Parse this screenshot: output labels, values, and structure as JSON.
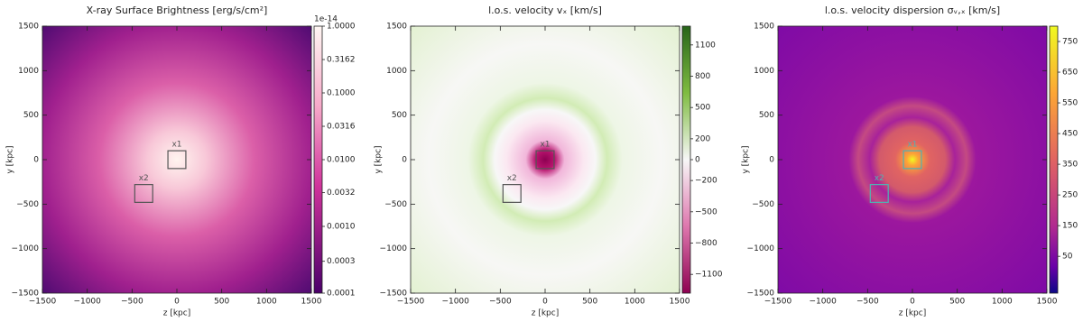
{
  "chart_data": [
    {
      "type": "heatmap",
      "title": "X-ray Surface Brightness [erg/s/cm²]",
      "xlabel": "z [kpc]",
      "ylabel": "y [kpc]",
      "xlim": [
        -1500,
        1500
      ],
      "ylim": [
        -1500,
        1500
      ],
      "xticks": [
        {
          "value": -1500,
          "label": "−1500"
        },
        {
          "value": -1000,
          "label": "−1000"
        },
        {
          "value": -500,
          "label": "−500"
        },
        0,
        500,
        1000,
        1500
      ],
      "yticks": [
        {
          "value": -1500,
          "label": "−1500"
        },
        {
          "value": -1000,
          "label": "−1000"
        },
        {
          "value": -500,
          "label": "−500"
        },
        0,
        500,
        1000,
        1500
      ],
      "colorbar": {
        "log": true,
        "lim": [
          0.0001,
          1
        ],
        "offset_label": "1e-14",
        "ticks": [
          {
            "value": 1,
            "label": "1.0000"
          },
          {
            "value": 0.3162,
            "label": "0.3162"
          },
          {
            "value": 0.1,
            "label": "0.1000"
          },
          {
            "value": 0.0316,
            "label": "0.0316"
          },
          {
            "value": 0.01,
            "label": "0.0100"
          },
          {
            "value": 0.0032,
            "label": "0.0032"
          },
          {
            "value": 0.001,
            "label": "0.0010"
          },
          {
            "value": 0.0003,
            "label": "0.0003"
          },
          {
            "value": 0.0001,
            "label": "0.0001"
          }
        ]
      },
      "box_color": "#555555",
      "annotations": [
        {
          "label": "x1",
          "x": 0,
          "y": 0,
          "size": 200
        },
        {
          "label": "x2",
          "x": -370,
          "y": -380,
          "size": 200
        }
      ]
    },
    {
      "type": "heatmap",
      "title": "l.o.s. velocity vₓ [km/s]",
      "xlabel": "z [kpc]",
      "ylabel": "y [kpc]",
      "xlim": [
        -1500,
        1500
      ],
      "ylim": [
        -1500,
        1500
      ],
      "xticks": [
        {
          "value": -1500,
          "label": "−1500"
        },
        {
          "value": -1000,
          "label": "−1000"
        },
        {
          "value": -500,
          "label": "−500"
        },
        0,
        500,
        1000,
        1500
      ],
      "yticks": [
        {
          "value": -1500,
          "label": "−1500"
        },
        {
          "value": -1000,
          "label": "−1000"
        },
        {
          "value": -500,
          "label": "−500"
        },
        0,
        500,
        1000,
        1500
      ],
      "colorbar": {
        "log": false,
        "lim": [
          -1280,
          1280
        ],
        "ticks": [
          1100,
          800,
          500,
          200,
          0,
          {
            "value": -200,
            "label": "−200"
          },
          {
            "value": -500,
            "label": "−500"
          },
          {
            "value": -800,
            "label": "−800"
          },
          {
            "value": -1100,
            "label": "−1100"
          }
        ]
      },
      "box_color": "#555555",
      "annotations": [
        {
          "label": "x1",
          "x": 0,
          "y": 0,
          "size": 200
        },
        {
          "label": "x2",
          "x": -370,
          "y": -380,
          "size": 200
        }
      ]
    },
    {
      "type": "heatmap",
      "title": "l.o.s. velocity dispersion σᵥ,ₓ [km/s]",
      "xlabel": "z [kpc]",
      "ylabel": "y [kpc]",
      "xlim": [
        -1500,
        1500
      ],
      "ylim": [
        -1500,
        1500
      ],
      "xticks": [
        {
          "value": -1500,
          "label": "−1500"
        },
        {
          "value": -1000,
          "label": "−1000"
        },
        {
          "value": -500,
          "label": "−500"
        },
        0,
        500,
        1000,
        1500
      ],
      "yticks": [
        {
          "value": -1500,
          "label": "−1500"
        },
        {
          "value": -1000,
          "label": "−1000"
        },
        {
          "value": -500,
          "label": "−500"
        },
        0,
        500,
        1000,
        1500
      ],
      "colorbar": {
        "log": false,
        "lim": [
          -70,
          800
        ],
        "ticks": [
          750,
          650,
          550,
          450,
          350,
          250,
          150,
          50
        ]
      },
      "box_color": "#4fb3b3",
      "annotations": [
        {
          "label": "x1",
          "x": 0,
          "y": 0,
          "size": 200
        },
        {
          "label": "x2",
          "x": -370,
          "y": -380,
          "size": 200
        }
      ]
    }
  ]
}
